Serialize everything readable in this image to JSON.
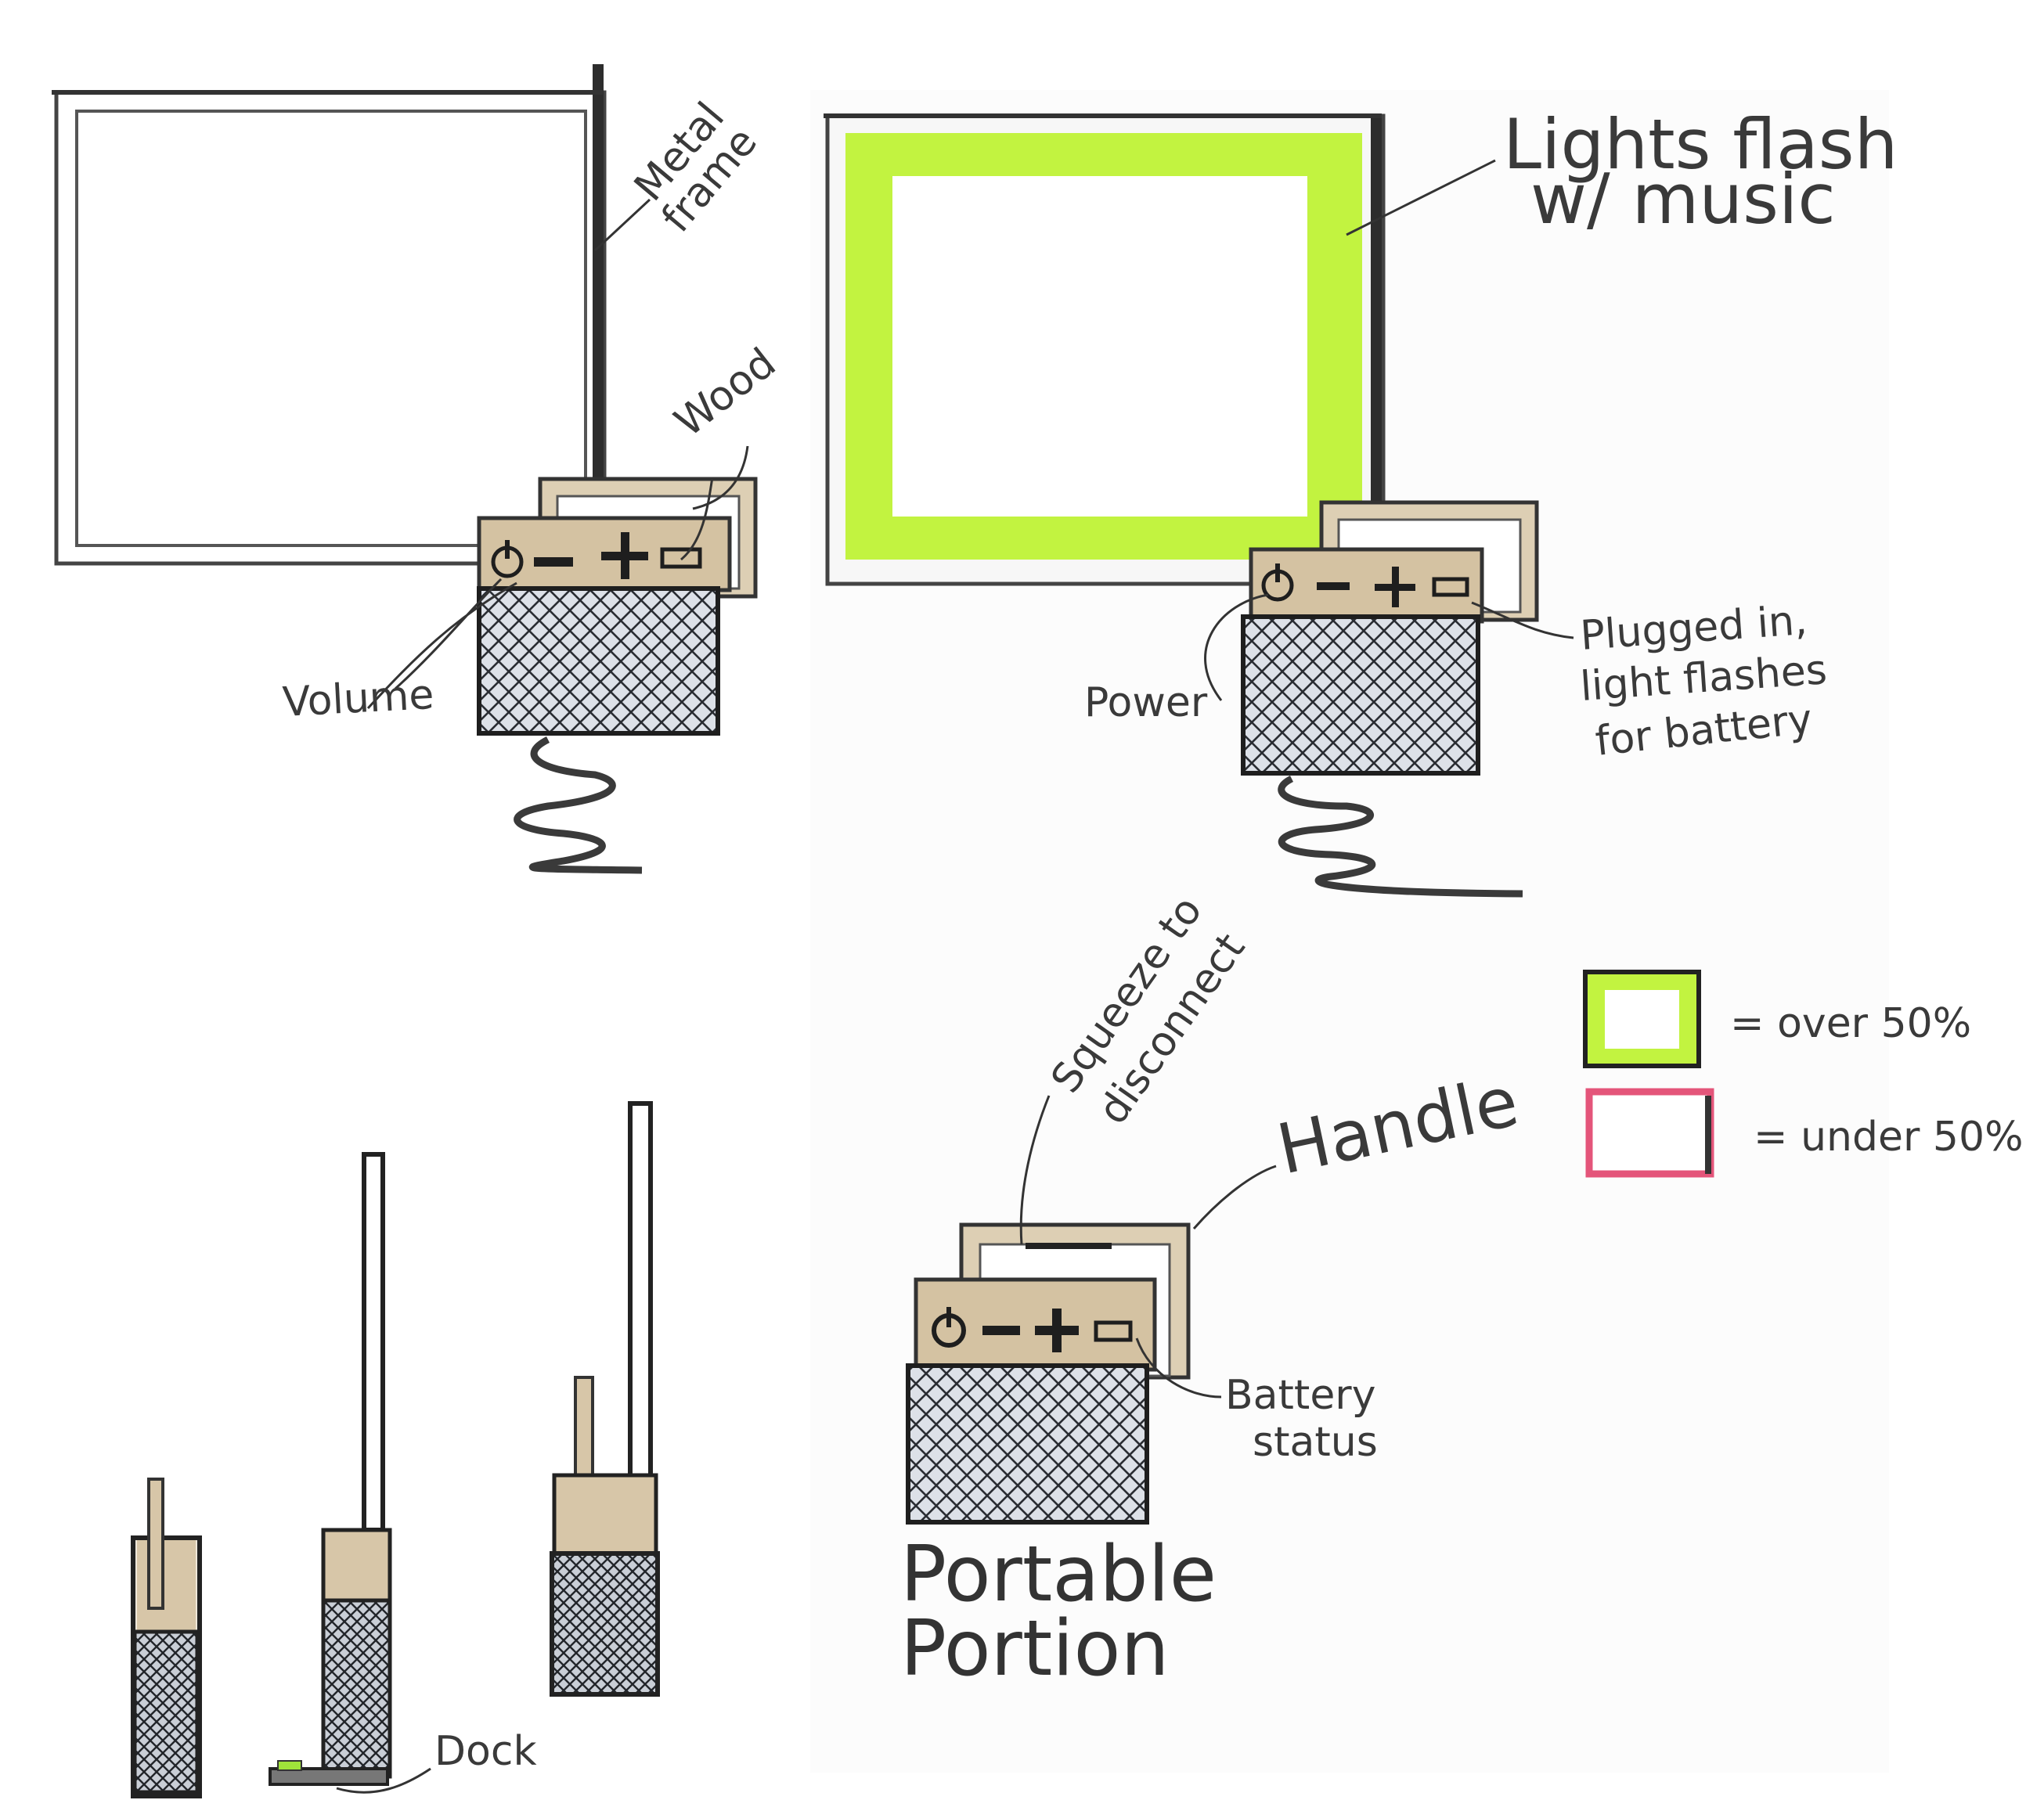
{
  "colors": {
    "wood": "#d7c6a8",
    "frame_light": "#e6e6e6",
    "frame_dark": "#2d2d2d",
    "green": "#bff33c",
    "pink": "#e4557a",
    "speaker": "#dfe3ea",
    "ink": "#333333"
  },
  "icons": [
    "power-icon",
    "minus-icon",
    "plus-icon",
    "battery-icon"
  ],
  "panel1": {
    "metal_frame": [
      "Metal",
      "frame"
    ],
    "wood": "Wood",
    "volume": "Volume"
  },
  "panel2": {
    "lights": [
      "Lights flash",
      "w/ music"
    ],
    "power": "Power",
    "plugged": [
      "Plugged in,",
      "light flashes",
      "for battery"
    ]
  },
  "panel3": {
    "dock": "Dock"
  },
  "panel4": {
    "squeeze": [
      "Squeeze to",
      "disconnect"
    ],
    "handle": "Handle",
    "battery_status": [
      "Battery",
      "status"
    ],
    "portable": [
      "Portable",
      "Portion"
    ]
  },
  "legend": {
    "over": "= over 50%",
    "under": "= under 50%"
  }
}
